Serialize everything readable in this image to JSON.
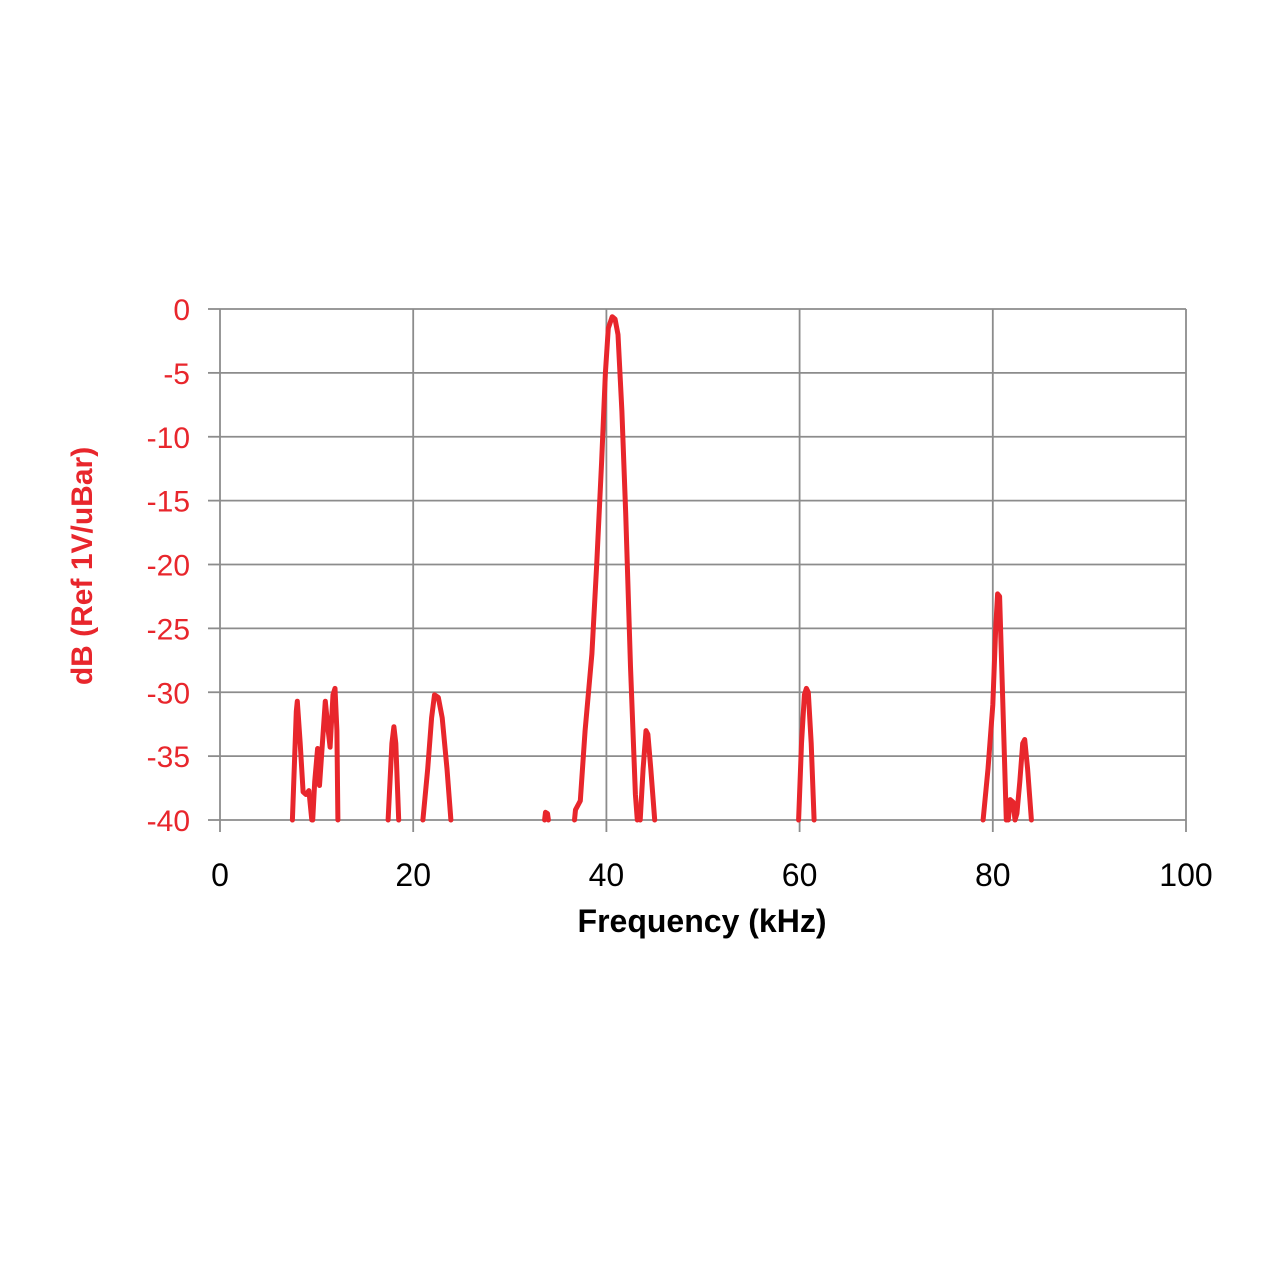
{
  "chart_data": {
    "type": "line",
    "title": "",
    "xlabel": "Frequency (kHz)",
    "ylabel": "dB (Ref 1V/uBar)",
    "xlim": [
      0,
      100
    ],
    "ylim": [
      -40,
      0
    ],
    "xticks": [
      0,
      20,
      40,
      60,
      80,
      100
    ],
    "yticks": [
      0,
      -5,
      -10,
      -15,
      -20,
      -25,
      -30,
      -35,
      -40
    ],
    "grid": true,
    "legend": "none",
    "series": [
      {
        "color": "#e8262c",
        "segments": [
          [
            [
              7.5,
              -40
            ],
            [
              7.9,
              -31.5
            ],
            [
              8.0,
              -30.7
            ],
            [
              8.3,
              -34
            ],
            [
              8.6,
              -37.8
            ],
            [
              8.9,
              -38
            ],
            [
              9.2,
              -37.7
            ],
            [
              9.5,
              -40
            ]
          ],
          [
            [
              9.6,
              -40
            ],
            [
              9.8,
              -37
            ],
            [
              10.1,
              -34.4
            ],
            [
              10.3,
              -37.3
            ],
            [
              10.6,
              -34
            ],
            [
              10.9,
              -30.7
            ],
            [
              11.2,
              -33
            ],
            [
              11.4,
              -34.3
            ],
            [
              11.7,
              -30.2
            ],
            [
              11.9,
              -29.7
            ],
            [
              12.1,
              -33
            ],
            [
              12.2,
              -40
            ]
          ],
          [
            [
              17.4,
              -40
            ],
            [
              17.8,
              -34
            ],
            [
              18.0,
              -32.7
            ],
            [
              18.2,
              -34
            ],
            [
              18.5,
              -40
            ]
          ],
          [
            [
              21.0,
              -40
            ],
            [
              21.5,
              -36
            ],
            [
              21.9,
              -32
            ],
            [
              22.2,
              -30.2
            ],
            [
              22.6,
              -30.4
            ],
            [
              23.0,
              -32
            ],
            [
              23.5,
              -36
            ],
            [
              23.9,
              -40
            ]
          ],
          [
            [
              33.6,
              -40
            ],
            [
              33.7,
              -39.4
            ],
            [
              33.9,
              -39.5
            ],
            [
              34.0,
              -40
            ]
          ],
          [
            [
              36.7,
              -40
            ],
            [
              36.8,
              -39.2
            ],
            [
              37.3,
              -38.5
            ],
            [
              37.8,
              -33
            ],
            [
              38.5,
              -27
            ],
            [
              39.0,
              -20
            ],
            [
              39.5,
              -12
            ],
            [
              39.9,
              -5
            ],
            [
              40.2,
              -1.5
            ],
            [
              40.6,
              -0.6
            ],
            [
              40.9,
              -0.8
            ],
            [
              41.2,
              -2
            ],
            [
              41.6,
              -8
            ],
            [
              42.0,
              -16
            ],
            [
              42.5,
              -28
            ],
            [
              43.0,
              -38
            ],
            [
              43.2,
              -40
            ]
          ],
          [
            [
              43.5,
              -40
            ],
            [
              43.8,
              -36
            ],
            [
              44.1,
              -33
            ],
            [
              44.3,
              -33.3
            ],
            [
              44.6,
              -36
            ],
            [
              45.0,
              -40
            ]
          ],
          [
            [
              59.9,
              -40
            ],
            [
              60.2,
              -34
            ],
            [
              60.5,
              -30.2
            ],
            [
              60.7,
              -29.7
            ],
            [
              60.9,
              -30
            ],
            [
              61.2,
              -34
            ],
            [
              61.5,
              -40
            ]
          ],
          [
            [
              79.0,
              -40
            ],
            [
              79.5,
              -36
            ],
            [
              80.0,
              -31
            ],
            [
              80.3,
              -25
            ],
            [
              80.5,
              -22.3
            ],
            [
              80.7,
              -22.5
            ],
            [
              81.0,
              -30
            ],
            [
              81.4,
              -40
            ]
          ],
          [
            [
              81.6,
              -40
            ],
            [
              81.8,
              -38.4
            ],
            [
              82.1,
              -38.6
            ],
            [
              82.3,
              -40
            ],
            [
              82.5,
              -39.5
            ],
            [
              82.8,
              -37
            ],
            [
              83.1,
              -34
            ],
            [
              83.3,
              -33.7
            ],
            [
              83.6,
              -36
            ],
            [
              84.0,
              -40
            ]
          ]
        ]
      }
    ]
  }
}
